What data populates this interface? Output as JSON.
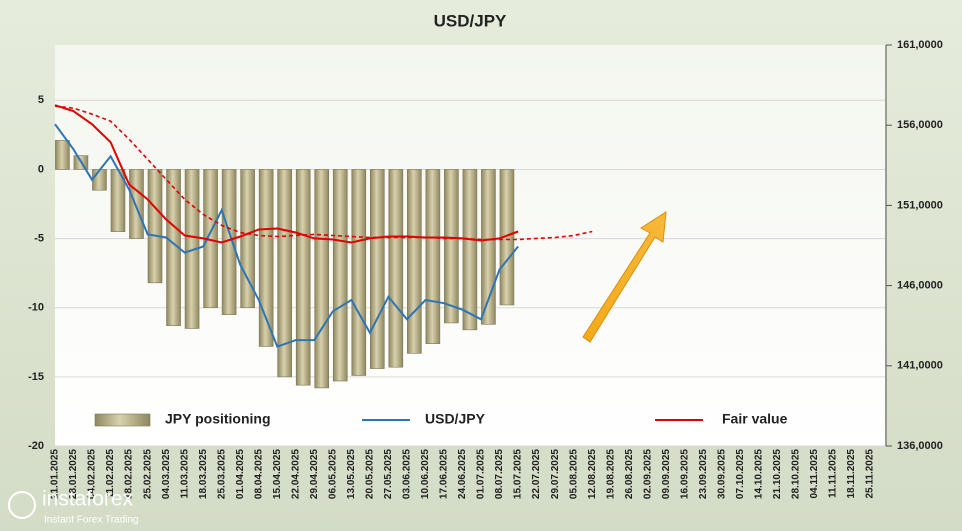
{
  "chart_data": {
    "type": "bar",
    "title": "USD/JPY",
    "categories": [
      "21.01.2025",
      "28.01.2025",
      "04.02.2025",
      "11.02.2025",
      "18.02.2025",
      "25.02.2025",
      "04.03.2025",
      "11.03.2025",
      "18.03.2025",
      "25.03.2025",
      "01.04.2025",
      "08.04.2025",
      "15.04.2025",
      "22.04.2025",
      "29.04.2025",
      "06.05.2025",
      "13.05.2025",
      "20.05.2025",
      "27.05.2025",
      "03.06.2025",
      "10.06.2025",
      "17.06.2025",
      "24.06.2025",
      "01.07.2025",
      "08.07.2025",
      "15.07.2025",
      "22.07.2025",
      "29.07.2025",
      "05.08.2025",
      "12.08.2025",
      "19.08.2025",
      "26.08.2025",
      "02.09.2025",
      "09.09.2025",
      "16.09.2025",
      "23.09.2025",
      "30.09.2025",
      "07.10.2025",
      "14.10.2025",
      "21.10.2025",
      "28.10.2025",
      "04.11.2025",
      "11.11.2025",
      "18.11.2025",
      "25.11.2025"
    ],
    "series": [
      {
        "name": "JPY positioning",
        "type": "bar",
        "color": "#b8b08a",
        "values": [
          2.1,
          1.0,
          -1.5,
          -4.5,
          -5.0,
          -8.2,
          -11.3,
          -11.5,
          -10.0,
          -10.5,
          -10.0,
          -12.8,
          -15.0,
          -15.6,
          -15.8,
          -15.3,
          -14.9,
          -14.4,
          -14.3,
          -13.3,
          -12.6,
          -11.1,
          -11.6,
          -11.2,
          -9.8,
          null,
          null,
          null,
          null,
          null,
          null,
          null,
          null,
          null,
          null,
          null,
          null,
          null,
          null,
          null,
          null,
          null,
          null,
          null,
          null
        ]
      },
      {
        "name": "USD/JPY",
        "type": "line",
        "axis": "y2",
        "color": "#2e75b6",
        "values": [
          156060,
          154500,
          152600,
          154060,
          152000,
          149200,
          149000,
          148060,
          148440,
          150700,
          147300,
          145100,
          142200,
          142600,
          142600,
          144400,
          145100,
          143060,
          145300,
          143900,
          145100,
          144900,
          144500,
          143900,
          147000,
          148440,
          null,
          null,
          null,
          null,
          null,
          null,
          null,
          null,
          null,
          null,
          null,
          null,
          null,
          null,
          null,
          null,
          null,
          null,
          null
        ]
      },
      {
        "name": "Fair value",
        "type": "line",
        "axis": "y2",
        "color": "#e00000",
        "values": [
          157250,
          156875,
          156060,
          154940,
          152310,
          151375,
          150125,
          149125,
          148940,
          148690,
          149060,
          149500,
          149560,
          149310,
          148940,
          148875,
          148690,
          148940,
          149060,
          149060,
          149000,
          149000,
          148940,
          148810,
          148940,
          149375,
          null,
          null,
          null,
          null,
          null,
          null,
          null,
          null,
          null,
          null,
          null,
          null,
          null,
          null,
          null,
          null,
          null,
          null,
          null
        ]
      },
      {
        "type": "line",
        "axis": "y2",
        "dashed": true,
        "color": "#e00000",
        "values": [
          157190,
          157060,
          156690,
          156250,
          155125,
          153875,
          152625,
          151375,
          150440,
          149750,
          149310,
          149125,
          149060,
          149125,
          149190,
          149125,
          149060,
          149000,
          149000,
          149000,
          149000,
          148940,
          148940,
          148875,
          148875,
          148875,
          148940,
          149000,
          149125,
          149375,
          null,
          null,
          null,
          null,
          null,
          null,
          null,
          null,
          null,
          null,
          null,
          null,
          null,
          null,
          null
        ]
      }
    ],
    "ylim": [
      -20,
      9
    ],
    "yticks": [
      -20,
      -15,
      -10,
      -5,
      0,
      5
    ],
    "y2lim": [
      136000,
      161000
    ],
    "y2ticks": [
      {
        "value": 136000,
        "label": "136,0000"
      },
      {
        "value": 141000,
        "label": "141,0000"
      },
      {
        "value": 146000,
        "label": "146,0000"
      },
      {
        "value": 151000,
        "label": "151,0000"
      },
      {
        "value": 156000,
        "label": "156,0000"
      },
      {
        "value": 161000,
        "label": "161,0000"
      }
    ],
    "grid": true
  },
  "logo": {
    "name": "instaforex",
    "tagline": "Instant Forex Trading"
  }
}
